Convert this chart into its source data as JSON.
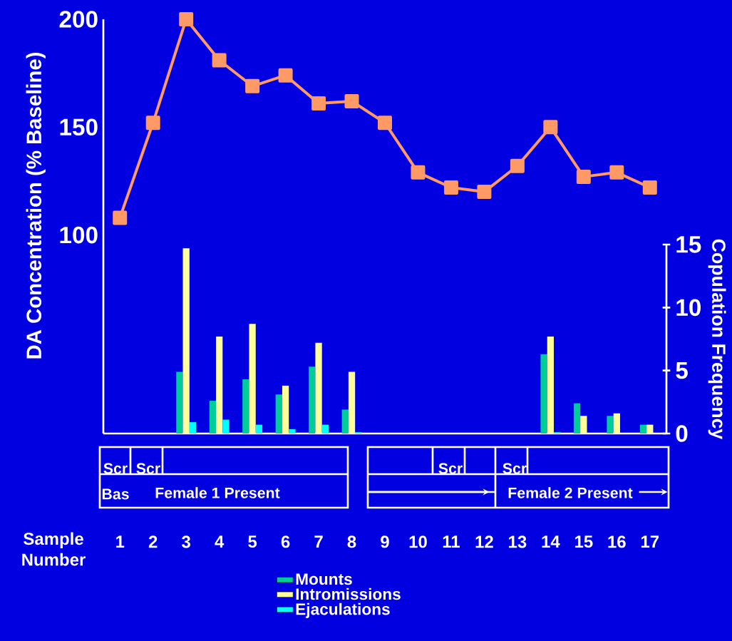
{
  "chart_data": {
    "type": "bar",
    "categories": [
      "1",
      "2",
      "3",
      "4",
      "5",
      "6",
      "7",
      "8",
      "9",
      "10",
      "11",
      "12",
      "13",
      "14",
      "15",
      "16",
      "17"
    ],
    "series": [
      {
        "type": "line",
        "color": "#ff9966",
        "values": [
          108,
          152,
          200,
          181,
          169,
          174,
          161,
          162,
          152,
          129,
          122,
          120,
          132,
          150,
          127,
          129,
          122
        ]
      },
      {
        "name": "Mounts",
        "color": "#00cc99",
        "axis": "y2",
        "values": [
          0,
          0,
          4.9,
          2.6,
          4.3,
          3.1,
          5.3,
          1.9,
          0,
          0,
          0,
          0,
          0,
          6.3,
          2.4,
          1.4,
          0.7
        ]
      },
      {
        "name": "Intromissions",
        "color": "#ffff99",
        "axis": "y2",
        "values": [
          0,
          0,
          14.7,
          7.7,
          8.7,
          3.8,
          7.2,
          4.9,
          0,
          0,
          0,
          0,
          0,
          7.7,
          1.4,
          1.6,
          0.7
        ]
      },
      {
        "name": "Ejaculations",
        "color": "#00ffff",
        "axis": "y2",
        "values": [
          0,
          0,
          0.9,
          1.1,
          0.7,
          0.35,
          0.7,
          0.1,
          0,
          0,
          0,
          0,
          0,
          0.1,
          0,
          0,
          0
        ]
      }
    ],
    "xlabel": "Sample Number",
    "ylabel": "DA Concentration (% Baseline)",
    "y2label": "Copulation Frequency",
    "ylim": [
      8,
      200
    ],
    "yticks": [
      100,
      150,
      200
    ],
    "y2lim": [
      0,
      15
    ],
    "y2ticks": [
      0,
      5,
      10,
      15
    ],
    "marker": "square",
    "legend": "bottom",
    "annotations": [
      "Scr",
      "Scr",
      "Scr",
      "Scr",
      "Bas",
      "Female 1 Present",
      "Female 2 Present"
    ]
  }
}
